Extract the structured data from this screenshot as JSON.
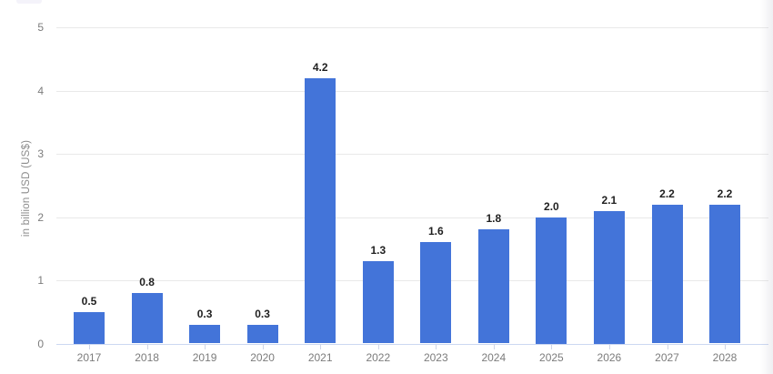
{
  "chart_data": {
    "type": "bar",
    "title": "",
    "categories": [
      "2017",
      "2018",
      "2019",
      "2020",
      "2021",
      "2022",
      "2023",
      "2024",
      "2025",
      "2026",
      "2027",
      "2028"
    ],
    "values": [
      0.5,
      0.8,
      0.3,
      0.3,
      4.2,
      1.3,
      1.6,
      1.8,
      2.0,
      2.1,
      2.2,
      2.2
    ],
    "value_labels": [
      "0.5",
      "0.8",
      "0.3",
      "0.3",
      "4.2",
      "1.3",
      "1.6",
      "1.8",
      "2.0",
      "2.1",
      "2.2",
      "2.2"
    ],
    "xlabel": "",
    "ylabel": "in billion USD (US$)",
    "y_ticks": [
      "0",
      "1",
      "2",
      "3",
      "4",
      "5"
    ],
    "ylim": [
      0,
      5
    ],
    "grid": "horizontal",
    "legend": "none"
  },
  "colors": {
    "bar": "#4374d9",
    "baseline": "#ccd8f2",
    "gridline": "#e9e9e9",
    "tick_text": "#7c7c7c",
    "value_label_text": "#1f1f1f",
    "ylabel_text": "#8b8b8b"
  }
}
